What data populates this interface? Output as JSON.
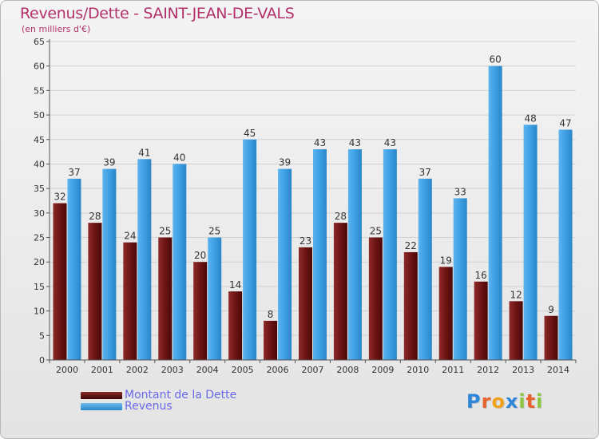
{
  "header": {
    "title": "Revenus/Dette - SAINT-JEAN-DE-VALS",
    "subtitle": "(en milliers d'€)"
  },
  "chart_data": {
    "type": "bar",
    "title": "Revenus/Dette - SAINT-JEAN-DE-VALS",
    "subtitle": "(en milliers d'€)",
    "categories": [
      "2000",
      "2001",
      "2002",
      "2003",
      "2004",
      "2005",
      "2006",
      "2007",
      "2008",
      "2009",
      "2010",
      "2011",
      "2012",
      "2013",
      "2014"
    ],
    "series": [
      {
        "name": "Montant de la Dette",
        "color": "#7a1a1a",
        "values": [
          32,
          28,
          24,
          25,
          20,
          14,
          8,
          23,
          28,
          25,
          22,
          19,
          16,
          12,
          9
        ]
      },
      {
        "name": "Revenus",
        "color": "#3d9fe3",
        "values": [
          37,
          39,
          41,
          40,
          25,
          45,
          39,
          43,
          43,
          43,
          37,
          33,
          60,
          48,
          47
        ]
      }
    ],
    "ylim": [
      0,
      65
    ],
    "yticks": [
      0,
      5,
      10,
      15,
      20,
      25,
      30,
      35,
      40,
      45,
      50,
      55,
      60,
      65
    ],
    "grid": true,
    "legend_position": "bottom-left"
  },
  "legend": {
    "items": [
      {
        "label": "Montant de la Dette",
        "color": "#5c0f0f"
      },
      {
        "label": "Revenus",
        "color": "#3d9fe3"
      }
    ]
  },
  "logo": {
    "letters": [
      {
        "char": "P",
        "color": "#2e86d8"
      },
      {
        "char": "r",
        "color": "#e8632b"
      },
      {
        "char": "o",
        "color": "#f0a21a"
      },
      {
        "char": "x",
        "color": "#2e86d8"
      },
      {
        "char": "i",
        "color": "#8cc63f"
      },
      {
        "char": "t",
        "color": "#e8632b"
      },
      {
        "char": "i",
        "color": "#8cc63f"
      }
    ]
  }
}
